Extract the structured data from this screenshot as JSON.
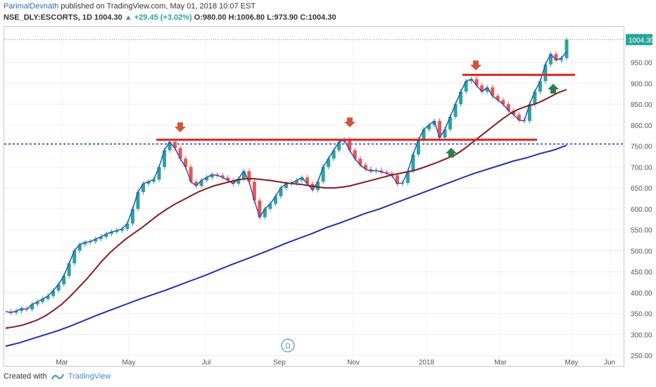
{
  "header": {
    "author": "ParimalDevnath",
    "published_text": " published on TradingView.com, May 01, 2018 10:07 EST",
    "symbol": "NSE_DLY:ESCORTS, 1D",
    "last": "1004.30",
    "change": "▲ +29.45 (+3.02%)",
    "ohlc": "O:980.00 H:1006.80 L:973.90 C:1004.30"
  },
  "footer": {
    "created_with": "Created with",
    "brand": "TradingView"
  },
  "price_tag": "1004.30",
  "marker_letter": "D",
  "colors": {
    "up": "#26a69a",
    "down": "#ef5350",
    "ma_fast": "#2c4fc7",
    "ma_mid": "#8b1a1a",
    "ma_slow": "#1f2fb8",
    "resistance": "#e8231c",
    "support_dotted": "#1f2fd0",
    "arrow_down": "#d9533c",
    "arrow_up": "#2e7d4f",
    "price_tag_bg": "#26a69a"
  },
  "chart_data": {
    "type": "candlestick",
    "y_ticks": [
      250,
      300,
      350,
      400,
      450,
      500,
      550,
      600,
      650,
      700,
      750,
      800,
      850,
      900,
      950
    ],
    "x_ticks": [
      "Mar",
      "May",
      "Jul",
      "Sep",
      "Nov",
      "2018",
      "Mar",
      "May",
      "Jun"
    ],
    "ylim": [
      225,
      1035
    ],
    "close_series": [
      355,
      352,
      356,
      362,
      360,
      372,
      378,
      385,
      392,
      405,
      420,
      440,
      470,
      500,
      515,
      520,
      522,
      528,
      533,
      540,
      545,
      548,
      552,
      565,
      600,
      640,
      660,
      665,
      670,
      700,
      740,
      760,
      745,
      720,
      700,
      665,
      655,
      668,
      675,
      682,
      680,
      675,
      668,
      660,
      672,
      690,
      665,
      620,
      580,
      600,
      612,
      630,
      650,
      660,
      662,
      668,
      675,
      660,
      645,
      665,
      700,
      720,
      740,
      760,
      765,
      740,
      720,
      705,
      695,
      690,
      692,
      688,
      685,
      680,
      660,
      662,
      690,
      730,
      765,
      790,
      800,
      810,
      770,
      790,
      820,
      850,
      880,
      905,
      910,
      895,
      880,
      890,
      870,
      860,
      850,
      835,
      825,
      812,
      810,
      850,
      880,
      905,
      945,
      970,
      955,
      960,
      1004.3
    ],
    "moving_averages": [
      {
        "values": [
          355,
          352,
          356,
          362,
          360,
          372,
          378,
          385,
          392,
          405,
          420,
          440,
          470,
          500,
          515,
          520,
          522,
          528,
          533,
          540,
          545,
          548,
          552,
          565,
          600,
          640,
          660,
          665,
          670,
          700,
          740,
          760,
          745,
          720,
          700,
          665,
          655,
          668,
          675,
          682,
          680,
          675,
          668,
          660,
          672,
          690,
          665,
          620,
          580,
          600,
          612,
          630,
          650,
          660,
          662,
          668,
          675,
          660,
          645,
          665,
          700,
          720,
          740,
          760,
          765,
          740,
          720,
          705,
          695,
          690,
          692,
          688,
          685,
          680,
          660,
          662,
          690,
          730,
          765,
          790,
          800,
          810,
          770,
          790,
          820,
          850,
          880,
          905,
          910,
          895,
          880,
          890,
          870,
          860,
          850,
          835,
          825,
          812,
          810,
          850,
          880,
          905,
          945,
          970,
          955,
          960,
          975
        ]
      },
      {
        "values": [
          315,
          318,
          322,
          328,
          335,
          345,
          358,
          372,
          390,
          410,
          430,
          452,
          475,
          495,
          512,
          528,
          542,
          555,
          570,
          585,
          598,
          610,
          620,
          630,
          640,
          648,
          655,
          660,
          665,
          670,
          672,
          672,
          670,
          668,
          665,
          662,
          660,
          658,
          655,
          652,
          650,
          650,
          652,
          655,
          660,
          665,
          670,
          675,
          680,
          684,
          688,
          692,
          698,
          705,
          712,
          720,
          728,
          740,
          755,
          770,
          785,
          800,
          815,
          828,
          838,
          845,
          850,
          858,
          868,
          878,
          885
        ]
      },
      {
        "values": [
          272,
          280,
          290,
          300,
          310,
          322,
          335,
          348,
          360,
          372,
          384,
          395,
          406,
          418,
          430,
          442,
          455,
          468,
          480,
          492,
          505,
          518,
          530,
          542,
          555,
          566,
          578,
          590,
          600,
          612,
          624,
          636,
          648,
          660,
          672,
          684,
          694,
          704,
          714,
          722,
          732,
          740,
          752
        ]
      }
    ],
    "resistance_lines": [
      765,
      765,
      920
    ],
    "support_dotted_line": 755,
    "last_price": 1004.3
  }
}
